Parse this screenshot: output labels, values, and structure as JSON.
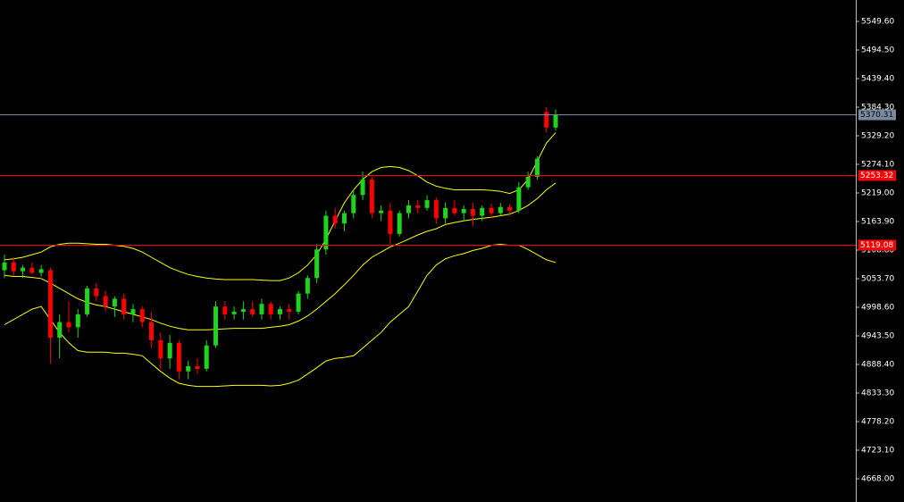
{
  "chart_data": {
    "type": "candlestick",
    "ylim": [
      4623.2,
      5590.9
    ],
    "yticks": [
      {
        "value": 5549.6,
        "label": "5549.60"
      },
      {
        "value": 5494.5,
        "label": "5494.50"
      },
      {
        "value": 5439.4,
        "label": "5439.40"
      },
      {
        "value": 5384.3,
        "label": "5384.30"
      },
      {
        "value": 5329.2,
        "label": "5329.20"
      },
      {
        "value": 5274.1,
        "label": "5274.10"
      },
      {
        "value": 5219,
        "label": "5219.00"
      },
      {
        "value": 5163.9,
        "label": "5163.90"
      },
      {
        "value": 5108.8,
        "label": "5108.80"
      },
      {
        "value": 5053.7,
        "label": "5053.70"
      },
      {
        "value": 4998.6,
        "label": "4998.60"
      },
      {
        "value": 4943.5,
        "label": "4943.50"
      },
      {
        "value": 4888.4,
        "label": "4888.40"
      },
      {
        "value": 4833.3,
        "label": "4833.30"
      },
      {
        "value": 4778.2,
        "label": "4778.20"
      },
      {
        "value": 4723.1,
        "label": "4723.10"
      },
      {
        "value": 4668,
        "label": "4668.00"
      }
    ],
    "up_color": "#1fd41f",
    "down_color": "#ff0000",
    "open": [
      5070,
      5085,
      5068,
      5075,
      5065,
      5070,
      4940,
      4970,
      4960,
      4985,
      5035,
      5020,
      5000,
      5015,
      4985,
      4995,
      4970,
      4935,
      4900,
      4930,
      4875,
      4885,
      4880,
      4925,
      5000,
      4985,
      4990,
      4995,
      4985,
      5005,
      4985,
      4995,
      4990,
      5025,
      5055,
      5110,
      5175,
      5160,
      5180,
      5215,
      5245,
      5180,
      5185,
      5140,
      5180,
      5195,
      5190,
      5205,
      5170,
      5190,
      5180,
      5188,
      5175,
      5190,
      5180,
      5192,
      5185,
      5230,
      5250,
      5375,
      5345
    ],
    "high": [
      5100,
      5095,
      5080,
      5085,
      5080,
      5075,
      4985,
      5010,
      4995,
      5040,
      5045,
      5030,
      5020,
      5025,
      5005,
      5000,
      4990,
      4950,
      4945,
      4935,
      4895,
      4900,
      4935,
      5010,
      5010,
      5000,
      5010,
      5010,
      5015,
      5010,
      5000,
      5005,
      5030,
      5060,
      5120,
      5185,
      5190,
      5185,
      5225,
      5260,
      5250,
      5195,
      5200,
      5185,
      5205,
      5205,
      5215,
      5210,
      5200,
      5205,
      5195,
      5200,
      5195,
      5198,
      5200,
      5198,
      5240,
      5260,
      5290,
      5385,
      5380
    ],
    "low": [
      5055,
      5060,
      5055,
      5062,
      5058,
      4890,
      4900,
      4950,
      4940,
      4980,
      5010,
      4990,
      4980,
      4975,
      4970,
      4960,
      4920,
      4880,
      4880,
      4860,
      4860,
      4870,
      4875,
      4920,
      4975,
      4975,
      4975,
      4980,
      4975,
      4975,
      4975,
      4975,
      4985,
      5015,
      5045,
      5100,
      5150,
      5145,
      5170,
      5205,
      5170,
      5165,
      5120,
      5135,
      5170,
      5180,
      5185,
      5160,
      5160,
      5175,
      5165,
      5155,
      5165,
      5170,
      5175,
      5175,
      5180,
      5225,
      5245,
      5335,
      5340
    ],
    "close": [
      5085,
      5068,
      5075,
      5065,
      5072,
      4940,
      4970,
      4960,
      4985,
      5035,
      5020,
      5000,
      5015,
      4985,
      4995,
      4970,
      4935,
      4900,
      4930,
      4875,
      4885,
      4880,
      4925,
      5000,
      4985,
      4990,
      4995,
      4985,
      5005,
      4985,
      4995,
      4990,
      5025,
      5055,
      5110,
      5175,
      5160,
      5180,
      5215,
      5245,
      5180,
      5185,
      5140,
      5180,
      5195,
      5190,
      5205,
      5170,
      5190,
      5180,
      5188,
      5175,
      5190,
      5180,
      5192,
      5185,
      5230,
      5250,
      5285,
      5345,
      5370
    ],
    "bands": [
      {
        "color": "#ffff00",
        "values": [
          5090,
          5092,
          5095,
          5100,
          5105,
          5115,
          5120,
          5122,
          5122,
          5121,
          5120,
          5120,
          5118,
          5116,
          5112,
          5105,
          5095,
          5085,
          5075,
          5068,
          5062,
          5058,
          5055,
          5053,
          5052,
          5052,
          5052,
          5052,
          5051,
          5050,
          5050,
          5055,
          5065,
          5080,
          5100,
          5130,
          5165,
          5200,
          5225,
          5245,
          5260,
          5268,
          5270,
          5268,
          5262,
          5252,
          5240,
          5232,
          5228,
          5225,
          5225,
          5225,
          5225,
          5224,
          5222,
          5218,
          5225,
          5245,
          5280,
          5315,
          5335
        ]
      },
      {
        "color": "#ffff00",
        "values": [
          5060,
          5058,
          5058,
          5056,
          5054,
          5045,
          5035,
          5025,
          5015,
          5008,
          5003,
          5000,
          4995,
          4990,
          4985,
          4980,
          4975,
          4968,
          4962,
          4958,
          4955,
          4955,
          4955,
          4956,
          4957,
          4958,
          4958,
          4958,
          4958,
          4960,
          4962,
          4965,
          4972,
          4982,
          4995,
          5010,
          5025,
          5042,
          5060,
          5080,
          5095,
          5105,
          5115,
          5122,
          5130,
          5138,
          5145,
          5150,
          5158,
          5162,
          5165,
          5168,
          5170,
          5172,
          5175,
          5178,
          5185,
          5195,
          5208,
          5225,
          5238
        ]
      },
      {
        "color": "#ffff00",
        "values": [
          4965,
          4975,
          4985,
          4995,
          5000,
          4975,
          4950,
          4930,
          4915,
          4912,
          4912,
          4912,
          4910,
          4910,
          4908,
          4905,
          4890,
          4875,
          4862,
          4852,
          4848,
          4846,
          4846,
          4846,
          4847,
          4848,
          4848,
          4848,
          4848,
          4847,
          4848,
          4852,
          4858,
          4870,
          4882,
          4895,
          4900,
          4902,
          4905,
          4920,
          4935,
          4950,
          4970,
          4985,
          5000,
          5030,
          5060,
          5080,
          5092,
          5098,
          5102,
          5108,
          5112,
          5118,
          5120,
          5118,
          5118,
          5110,
          5100,
          5090,
          5085
        ]
      }
    ],
    "price_lines": [
      {
        "value": 5370.31,
        "color": "#7a8aa0",
        "label_color": "#000000"
      },
      {
        "value": 5253.32,
        "color": "#ff0000",
        "label_color": "#ffffff"
      },
      {
        "value": 5119.08,
        "color": "#ff0000",
        "label_color": "#ffffff"
      }
    ]
  }
}
